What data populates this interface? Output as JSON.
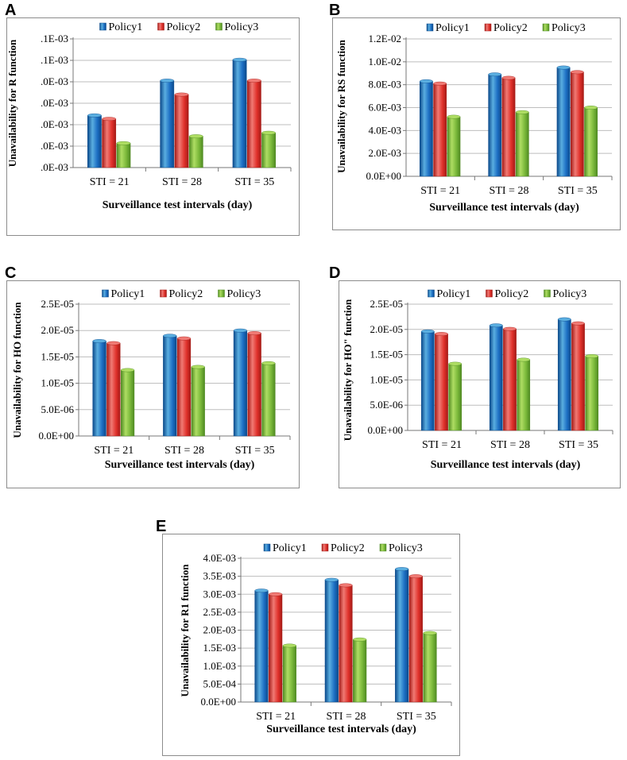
{
  "chart_data": [
    {
      "panel": "A",
      "type": "bar",
      "categories": [
        "STI = 21",
        "STI = 28",
        "STI = 35"
      ],
      "series": [
        {
          "name": "Policy1",
          "values": [
            0.0077,
            0.0087,
            0.0093
          ]
        },
        {
          "name": "Policy2",
          "values": [
            0.0076,
            0.0083,
            0.0087
          ]
        },
        {
          "name": "Policy3",
          "values": [
            0.0069,
            0.0071,
            0.0072
          ]
        }
      ],
      "yticks": [
        ".0E-03",
        ".0E-03",
        ".0E-03",
        ".0E-03",
        ".0E-03",
        ".1E-03",
        ".1E-03"
      ],
      "ylim": [
        0.0062,
        0.0099
      ],
      "ylabel": "Unavailability for R function",
      "xlabel": "Surveillance test intervals (day)",
      "legend": "top"
    },
    {
      "panel": "B",
      "type": "bar",
      "categories": [
        "STI = 21",
        "STI = 28",
        "STI = 35"
      ],
      "series": [
        {
          "name": "Policy1",
          "values": [
            0.0083,
            0.0089,
            0.0095
          ]
        },
        {
          "name": "Policy2",
          "values": [
            0.0081,
            0.0086,
            0.0091
          ]
        },
        {
          "name": "Policy3",
          "values": [
            0.0052,
            0.0056,
            0.006
          ]
        }
      ],
      "yticks": [
        "0.0E+00",
        "2.0E-03",
        "4.0E-03",
        "6.0E-03",
        "8.0E-03",
        "1.0E-02",
        "1.2E-02"
      ],
      "ylim": [
        0,
        0.012
      ],
      "ylabel": "Unavailability for RS function",
      "xlabel": "Surveillance test intervals (day)",
      "legend": "top"
    },
    {
      "panel": "C",
      "type": "bar",
      "categories": [
        "STI = 21",
        "STI = 28",
        "STI = 35"
      ],
      "series": [
        {
          "name": "Policy1",
          "values": [
            1.8e-05,
            1.9e-05,
            2e-05
          ]
        },
        {
          "name": "Policy2",
          "values": [
            1.76e-05,
            1.85e-05,
            1.95e-05
          ]
        },
        {
          "name": "Policy3",
          "values": [
            1.25e-05,
            1.31e-05,
            1.38e-05
          ]
        }
      ],
      "yticks": [
        "0.0E+00",
        "5.0E-06",
        "1.0E-05",
        "1.5E-05",
        "2.0E-05",
        "2.5E-05"
      ],
      "ylim": [
        0,
        2.5e-05
      ],
      "ylabel": "Unavailability for HO function",
      "xlabel": "Surveillance test intervals (day)",
      "legend": "top"
    },
    {
      "panel": "D",
      "type": "bar",
      "categories": [
        "STI = 21",
        "STI = 28",
        "STI = 35"
      ],
      "series": [
        {
          "name": "Policy1",
          "values": [
            1.96e-05,
            2.08e-05,
            2.2e-05
          ]
        },
        {
          "name": "Policy2",
          "values": [
            1.91e-05,
            2.01e-05,
            2.12e-05
          ]
        },
        {
          "name": "Policy3",
          "values": [
            1.32e-05,
            1.4e-05,
            1.47e-05
          ]
        }
      ],
      "yticks": [
        "0.0E+00",
        "5.0E-06",
        "1.0E-05",
        "1.5E-05",
        "2.0E-05",
        "2.5E-05"
      ],
      "ylim": [
        0,
        2.5e-05
      ],
      "ylabel": "Unavailability for HO\" function",
      "xlabel": "Surveillance test intervals (day)",
      "legend": "top"
    },
    {
      "panel": "E",
      "type": "bar",
      "categories": [
        "STI = 21",
        "STI = 28",
        "STI = 35"
      ],
      "series": [
        {
          "name": "Policy1",
          "values": [
            0.0031,
            0.0034,
            0.0037
          ]
        },
        {
          "name": "Policy2",
          "values": [
            0.003,
            0.00325,
            0.0035
          ]
        },
        {
          "name": "Policy3",
          "values": [
            0.00157,
            0.00174,
            0.00192
          ]
        }
      ],
      "yticks": [
        "0.0E+00",
        "5.0E-04",
        "1.0E-03",
        "1.5E-03",
        "2.0E-03",
        "2.5E-03",
        "3.0E-03",
        "3.5E-03",
        "4.0E-03"
      ],
      "ylim": [
        0,
        0.004
      ],
      "ylabel": "Unavailability for R1 function",
      "xlabel": "Surveillance test intervals (day)",
      "legend": "top"
    }
  ],
  "colors": {
    "Policy1": {
      "light": "#5aaee0",
      "base": "#1d6fc4",
      "dark": "#0b4a8c"
    },
    "Policy2": {
      "light": "#f07a74",
      "base": "#e0312b",
      "dark": "#a51a16"
    },
    "Policy3": {
      "light": "#aedd63",
      "base": "#7ab83a",
      "dark": "#4f8a22"
    }
  }
}
